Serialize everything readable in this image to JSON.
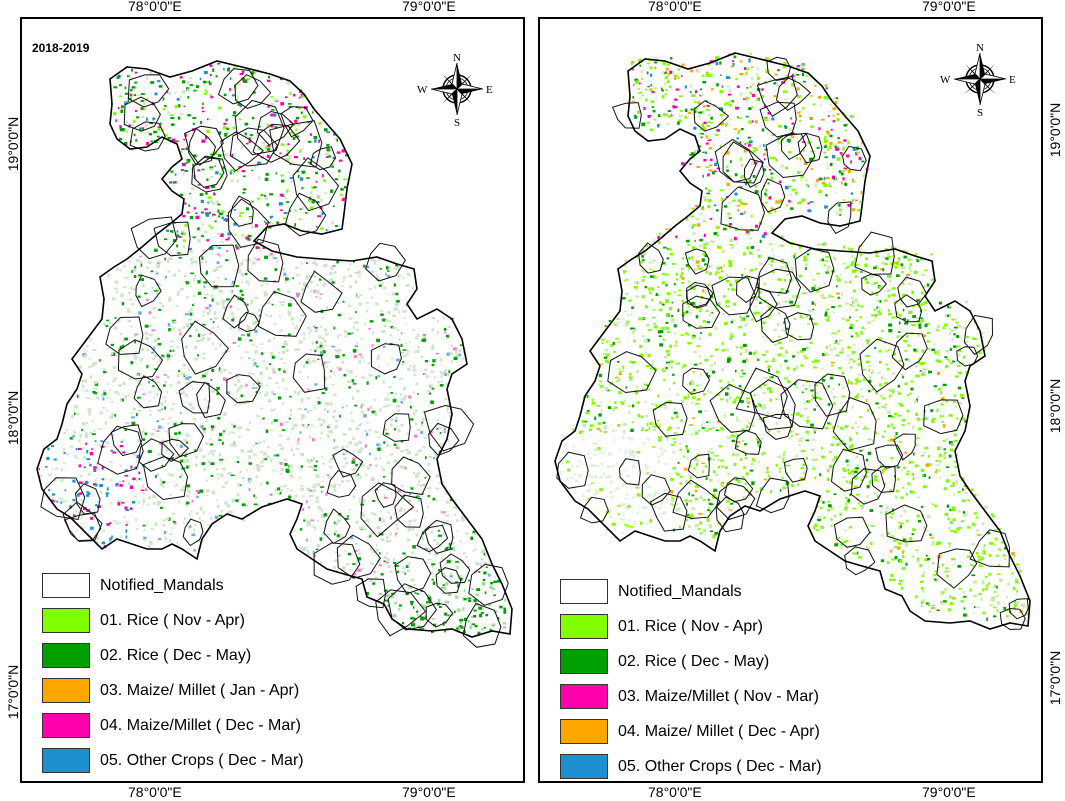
{
  "graticule": {
    "top": [
      "78°0'0\"E",
      "79°0'0\"E",
      "78°0'0\"E",
      "79°0'0\"E"
    ],
    "bottom": [
      "78°0'0\"E",
      "79°0'0\"E",
      "78°0'0\"E",
      "79°0'0\"E"
    ],
    "left": [
      "19°0'0\"N",
      "18°0'0\"N",
      "17°0'0\"N"
    ],
    "right": [
      "19°0'0\"N",
      "18°0'0\"N",
      "17°0'0\"N"
    ]
  },
  "panels": [
    {
      "year_label": "2018-2019",
      "compass": {
        "n": "N",
        "s": "S",
        "e": "E",
        "w": "W"
      },
      "legend": [
        {
          "label": "Notified_Mandals",
          "color": "#ffffff"
        },
        {
          "label": "01. Rice ( Nov - Apr)",
          "color": "#7fff00"
        },
        {
          "label": "02. Rice ( Dec - May)",
          "color": "#00a000"
        },
        {
          "label": "03. Maize/ Millet ( Jan - Apr)",
          "color": "#ffa500"
        },
        {
          "label": "04. Maize/Millet ( Dec - Mar)",
          "color": "#ff00aa"
        },
        {
          "label": "05. Other Crops ( Dec - Mar)",
          "color": "#1e90d0"
        }
      ]
    },
    {
      "year_label": "",
      "compass": {
        "n": "N",
        "s": "S",
        "e": "E",
        "w": "W"
      },
      "legend": [
        {
          "label": "Notified_Mandals",
          "color": "#ffffff"
        },
        {
          "label": "01. Rice ( Nov - Apr)",
          "color": "#7fff00"
        },
        {
          "label": "02. Rice ( Dec - May)",
          "color": "#00a000"
        },
        {
          "label": "03. Maize/Millet ( Nov - Mar)",
          "color": "#ff00aa"
        },
        {
          "label": "04. Maize/ Millet ( Dec - Apr)",
          "color": "#ffa500"
        },
        {
          "label": "05. Other Crops ( Dec - Mar)",
          "color": "#1e90d0"
        }
      ]
    }
  ]
}
